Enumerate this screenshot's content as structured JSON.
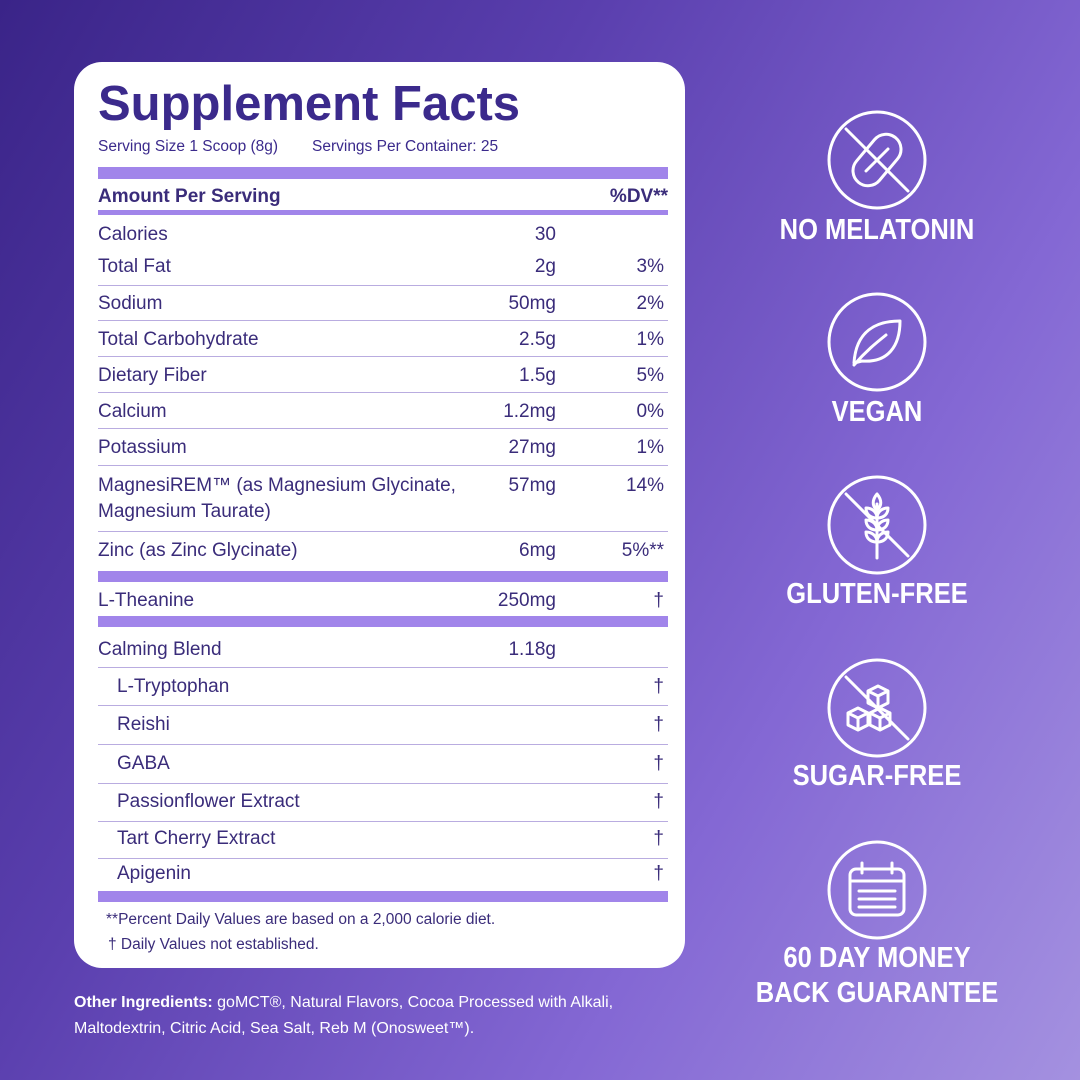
{
  "facts": {
    "title": "Supplement Facts",
    "serving_size": "Serving Size 1 Scoop (8g)",
    "servings_per_container": "Servings Per Container: 25",
    "header": {
      "amount": "Amount Per Serving",
      "dv": "%DV**"
    },
    "rows": [
      {
        "name": "Calories",
        "amount": "30"
      },
      {
        "name": "Total Fat",
        "amount": "2g",
        "dv": "3%"
      },
      {
        "name": "Sodium",
        "amount": "50mg",
        "dv": "2%"
      },
      {
        "name": "Total Carbohydrate",
        "amount": "2.5g",
        "dv": "1%"
      },
      {
        "name": "Dietary  Fiber",
        "amount": "1.5g",
        "dv": "5%"
      },
      {
        "name": "Calcium",
        "amount": "1.2mg",
        "dv": "0%"
      },
      {
        "name": "Potassium",
        "amount": "27mg",
        "dv": "1%"
      },
      {
        "name": "MagnesiREM™ (as Magnesium Glycinate, Magnesium Taurate)",
        "amount": "57mg",
        "dv": "14%"
      },
      {
        "name": "Zinc (as Zinc Glycinate)",
        "amount": "6mg",
        "dv": "5%**"
      },
      {
        "name": "L-Theanine",
        "amount": "250mg",
        "dv": "†"
      },
      {
        "name": "Calming Blend",
        "amount": "1.18g"
      },
      {
        "name": "L-Tryptophan",
        "dv": "†"
      },
      {
        "name": "Reishi",
        "dv": "†"
      },
      {
        "name": "GABA",
        "dv": "†"
      },
      {
        "name": "Passionflower Extract",
        "dv": "†"
      },
      {
        "name": "Tart Cherry Extract",
        "dv": "†"
      },
      {
        "name": "Apigenin",
        "dv": "†"
      }
    ],
    "footnotes": [
      "**Percent Daily Values are based on a 2,000 calorie diet.",
      "† Daily Values not established."
    ]
  },
  "other_ingredients": {
    "label": "Other Ingredients:",
    "text": "goMCT®, Natural Flavors, Cocoa Processed with Alkali, Maltodextrin, Citric Acid, Sea Salt, Reb M (Onosweet™)."
  },
  "badges": [
    "NO MELATONIN",
    "VEGAN",
    "GLUTEN-FREE",
    "SUGAR-FREE",
    "60 DAY MONEY BACK GUARANTEE"
  ]
}
